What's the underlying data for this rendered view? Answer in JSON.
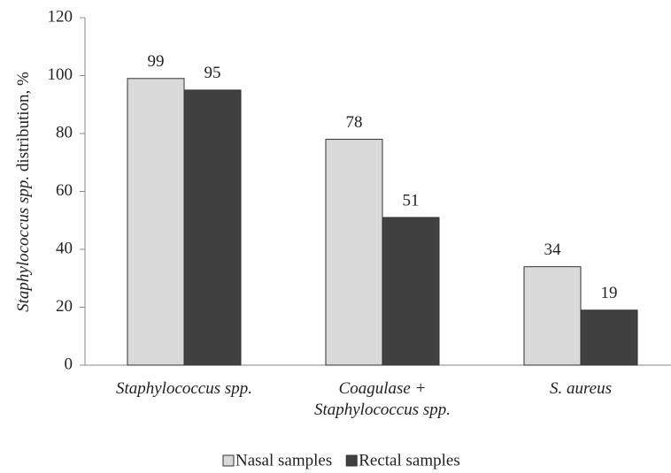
{
  "chart_data": {
    "type": "bar",
    "ylabel": {
      "italic": "Staphylococcus spp.",
      "normal": "distribution, %"
    },
    "categories": [
      "Staphylococcus spp.",
      "Coagulase +\nStaphylococcus spp.",
      "S. aureus"
    ],
    "series": [
      {
        "name": "Nasal samples",
        "color": "#d9d9d9",
        "values": [
          99,
          78,
          34
        ]
      },
      {
        "name": "Rectal samples",
        "color": "#404040",
        "values": [
          95,
          51,
          19
        ]
      }
    ],
    "ylim": [
      0,
      120
    ],
    "yticks": [
      0,
      20,
      40,
      60,
      80,
      100,
      120
    ],
    "legend": "bottom"
  }
}
